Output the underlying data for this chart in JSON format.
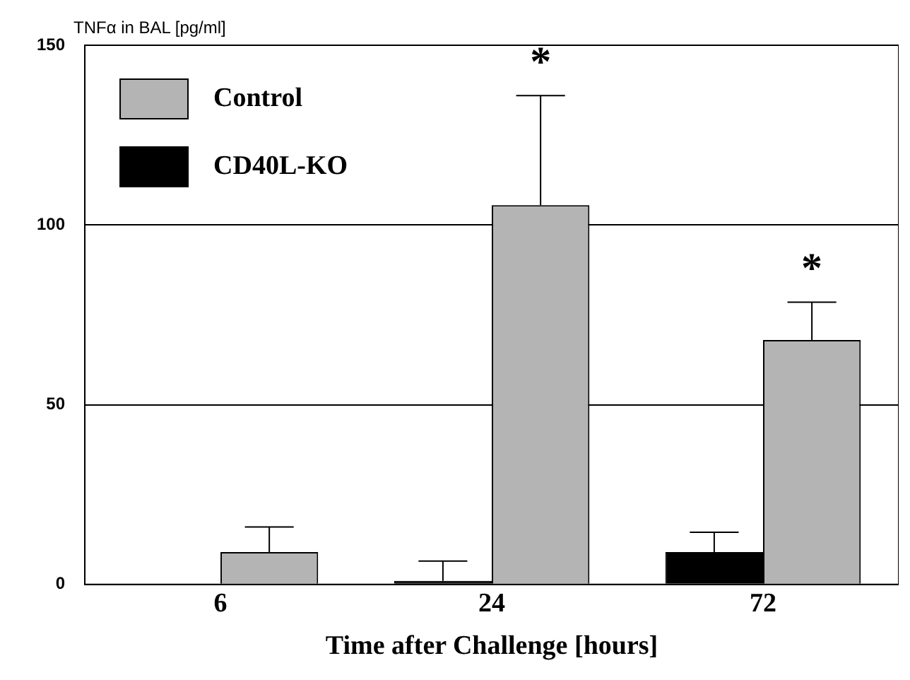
{
  "chart_data": {
    "type": "bar",
    "ylabel": "TNFα in BAL [pg/ml]",
    "xlabel": "Time after Challenge [hours]",
    "categories": [
      "6",
      "24",
      "72"
    ],
    "series": [
      {
        "name": "CD40L-KO",
        "color": "#000000",
        "values": [
          0,
          1,
          9
        ],
        "errors": [
          null,
          [
            1,
            6.5
          ],
          [
            9,
            14.5
          ]
        ]
      },
      {
        "name": "Control",
        "color": "#b4b4b4",
        "values": [
          9,
          105.5,
          68
        ],
        "errors": [
          [
            9,
            16
          ],
          [
            105.5,
            136
          ],
          [
            68,
            78.5
          ]
        ]
      }
    ],
    "ylim": [
      0,
      150
    ],
    "yticks": [
      0,
      50,
      100,
      150
    ],
    "grid": "y",
    "legend": "top left",
    "annotations": [
      {
        "text": "*",
        "x": "24",
        "y": 105.5
      },
      {
        "text": "*",
        "x": "72",
        "y": 68
      }
    ]
  }
}
